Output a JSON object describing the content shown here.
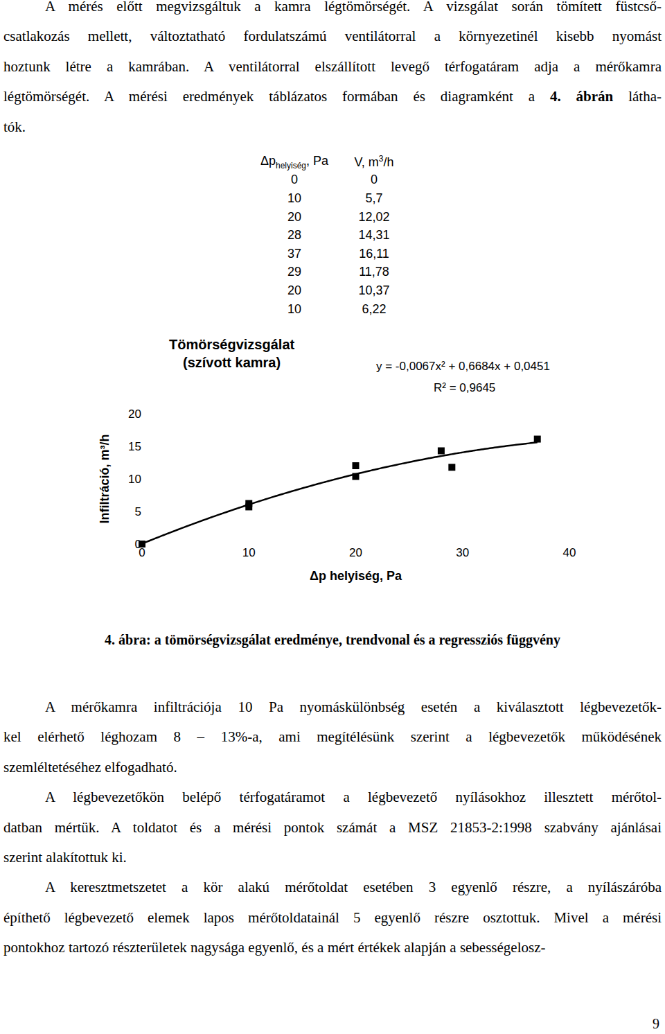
{
  "text_top": {
    "paragraphs": [
      [
        "A mérés előtt megvizsgáltuk a kamra légtömörségét. A vizsgálat során tömített füstcső-",
        "csatlakozás mellett, változtatható fordulatszámú ventilátorral a környezetinél kisebb nyomást",
        "hoztunk létre a kamrában. A ventilátorral elszállított levegő térfogatáram adja a mérőkamra",
        [
          "légtömörségét. A mérési eredmények táblázatos formában és diagramként a ",
          {
            "bold": "4. ábrán"
          },
          " látha-"
        ],
        "tók."
      ]
    ]
  },
  "table": {
    "header": [
      [
        {
          "text": "Δp"
        },
        {
          "text": "helyiség",
          "sub": true
        },
        {
          "text": ", Pa"
        }
      ],
      [
        {
          "text": "V, m"
        },
        {
          "text": "3",
          "sup": true
        },
        {
          "text": "/h"
        }
      ]
    ],
    "rows": [
      [
        "0",
        "0"
      ],
      [
        "10",
        "5,7"
      ],
      [
        "20",
        "12,02"
      ],
      [
        "28",
        "14,31"
      ],
      [
        "37",
        "16,11"
      ],
      [
        "29",
        "11,78"
      ],
      [
        "20",
        "10,37"
      ],
      [
        "10",
        "6,22"
      ]
    ]
  },
  "chart_data": {
    "type": "scatter",
    "title": "Tömörségvizsgálat\n(szívott kamra)",
    "x_label": "Δp helyiség, Pa",
    "y_label": "Infiltráció, m³/h",
    "x": [
      0,
      10,
      20,
      28,
      37,
      29,
      20,
      10
    ],
    "values": [
      0,
      5.7,
      12.02,
      14.31,
      16.11,
      11.78,
      10.37,
      6.22
    ],
    "color": "#000000",
    "marker": "square",
    "trendline": {
      "coefficients": [
        -0.0067,
        0.6684,
        0.0451
      ],
      "label": "y = -0,0067x² + 0,6684x + 0,0451",
      "r2": 0.9645,
      "r2_label": "R² = 0,9645",
      "color": "#000000",
      "line_style": "solid"
    },
    "xlim": [
      0,
      40
    ],
    "xticks": [
      0,
      10,
      20,
      30,
      40
    ],
    "ylim": [
      0,
      20
    ],
    "yticks": [
      0,
      5,
      10,
      15,
      20
    ],
    "grid": false
  },
  "caption": "4. ábra: a tömörségvizsgálat eredménye, trendvonal és a regressziós függvény",
  "text_bottom": {
    "paragraphs": [
      [
        "A mérőkamra infiltrációja 10 Pa nyomáskülönbség esetén a kiválasztott légbevezetők-",
        "kel elérhető léghozam 8 – 13%-a, ami megítélésünk szerint a légbevezetők működésének",
        "szemléltetéséhez elfogadható."
      ],
      [
        "A légbevezetőkön belépő térfogatáramot a légbevezető nyílásokhoz illesztett mérőtol-",
        "datban mértük. A toldatot és a mérési pontok számát a MSZ 21853-2:1998 szabvány ajánlásai",
        "szerint alakítottuk ki."
      ],
      [
        "A keresztmetszetet a kör alakú mérőtoldat esetében 3 egyenlő részre, a nyílászáróba",
        "építhető légbevezető elemek lapos mérőtoldatainál 5 egyenlő részre osztottuk. Mivel a mérési",
        "pontokhoz tartozó részterületek nagysága egyenlő, és a mért értékek alapján a sebességelosz-"
      ]
    ]
  },
  "page_number": "9"
}
